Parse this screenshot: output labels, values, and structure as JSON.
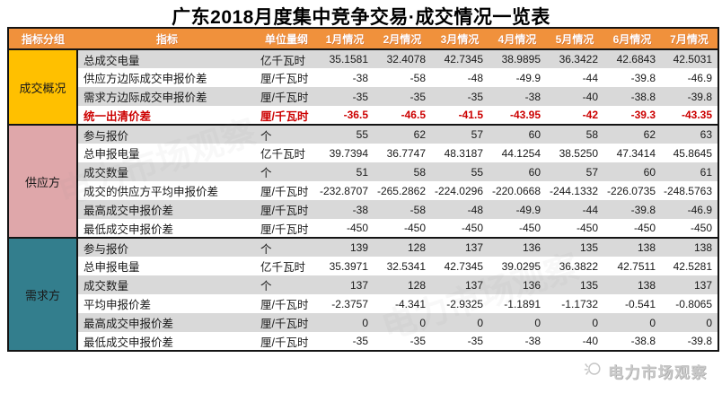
{
  "title": "广东2018月度集中竞争交易·成交情况一览表",
  "footer": {
    "brand": "电力市场观察"
  },
  "colors": {
    "header_bg": "#F0913C",
    "header_text": "#FFFFFF",
    "row_alt": "#D9D9D9",
    "highlight_text": "#CC0000",
    "border": "#141414",
    "group_overview": "#FFC000",
    "group_supply": "#DFA7AA",
    "group_demand": "#337E8D"
  },
  "chart_data": {
    "type": "table",
    "title": "广东2018月度集中竞争交易·成交情况一览表",
    "columns": [
      "指标分组",
      "指标",
      "单位量纲",
      "1月情况",
      "2月情况",
      "3月情况",
      "4月情况",
      "5月情况",
      "6月情况",
      "7月情况"
    ],
    "groups": [
      {
        "name": "成交概况",
        "color": "#FFC000",
        "rows": [
          {
            "indicator": "总成交电量",
            "unit": "亿千瓦时",
            "values": [
              "35.1581",
              "32.4078",
              "42.7345",
              "38.9895",
              "36.3422",
              "42.6843",
              "42.5031"
            ],
            "highlight": false
          },
          {
            "indicator": "供应方边际成交申报价差",
            "unit": "厘/千瓦时",
            "values": [
              "-38",
              "-58",
              "-48",
              "-49.9",
              "-44",
              "-39.8",
              "-46.9"
            ],
            "highlight": false
          },
          {
            "indicator": "需求方边际成交申报价差",
            "unit": "厘/千瓦时",
            "values": [
              "-35",
              "-35",
              "-35",
              "-38",
              "-40",
              "-38.8",
              "-39.8"
            ],
            "highlight": false
          },
          {
            "indicator": "统一出清价差",
            "unit": "厘/千瓦时",
            "values": [
              "-36.5",
              "-46.5",
              "-41.5",
              "-43.95",
              "-42",
              "-39.3",
              "-43.35"
            ],
            "highlight": true
          }
        ]
      },
      {
        "name": "供应方",
        "color": "#DFA7AA",
        "rows": [
          {
            "indicator": "参与报价",
            "unit": "个",
            "values": [
              "55",
              "62",
              "57",
              "60",
              "58",
              "62",
              "63"
            ],
            "highlight": false
          },
          {
            "indicator": "总申报电量",
            "unit": "亿千瓦时",
            "values": [
              "39.7394",
              "36.7747",
              "48.3187",
              "44.1254",
              "38.5250",
              "47.3414",
              "45.8645"
            ],
            "highlight": false
          },
          {
            "indicator": "成交数量",
            "unit": "个",
            "values": [
              "51",
              "58",
              "55",
              "60",
              "57",
              "60",
              "61"
            ],
            "highlight": false
          },
          {
            "indicator": "成交的供应方平均申报价差",
            "unit": "厘/千瓦时",
            "values": [
              "-232.8707",
              "-265.2862",
              "-224.0296",
              "-220.0668",
              "-244.1332",
              "-226.0735",
              "-248.5763"
            ],
            "highlight": false
          },
          {
            "indicator": "最高成交申报价差",
            "unit": "厘/千瓦时",
            "values": [
              "-38",
              "-58",
              "-48",
              "-49.9",
              "-44",
              "-39.8",
              "-46.9"
            ],
            "highlight": false
          },
          {
            "indicator": "最低成交申报价差",
            "unit": "厘/千瓦时",
            "values": [
              "-450",
              "-450",
              "-450",
              "-450",
              "-450",
              "-450",
              "-450"
            ],
            "highlight": false
          }
        ]
      },
      {
        "name": "需求方",
        "color": "#337E8D",
        "rows": [
          {
            "indicator": "参与报价",
            "unit": "个",
            "values": [
              "139",
              "128",
              "137",
              "136",
              "135",
              "138",
              "138"
            ],
            "highlight": false
          },
          {
            "indicator": "总申报电量",
            "unit": "亿千瓦时",
            "values": [
              "35.3971",
              "32.5341",
              "42.7345",
              "39.0295",
              "36.3822",
              "42.7511",
              "42.5281"
            ],
            "highlight": false
          },
          {
            "indicator": "成交数量",
            "unit": "个",
            "values": [
              "137",
              "128",
              "137",
              "136",
              "135",
              "138",
              "137"
            ],
            "highlight": false
          },
          {
            "indicator": "平均申报价差",
            "unit": "厘/千瓦时",
            "values": [
              "-2.3757",
              "-4.341",
              "-2.9325",
              "-1.1891",
              "-1.1732",
              "-0.541",
              "-0.8065"
            ],
            "highlight": false
          },
          {
            "indicator": "最高成交申报价差",
            "unit": "厘/千瓦时",
            "values": [
              "0",
              "0",
              "0",
              "0",
              "0",
              "0",
              "0"
            ],
            "highlight": false
          },
          {
            "indicator": "最低成交申报价差",
            "unit": "厘/千瓦时",
            "values": [
              "-35",
              "-35",
              "-35",
              "-38",
              "-40",
              "-38.8",
              "-39.8"
            ],
            "highlight": false
          }
        ]
      }
    ]
  }
}
